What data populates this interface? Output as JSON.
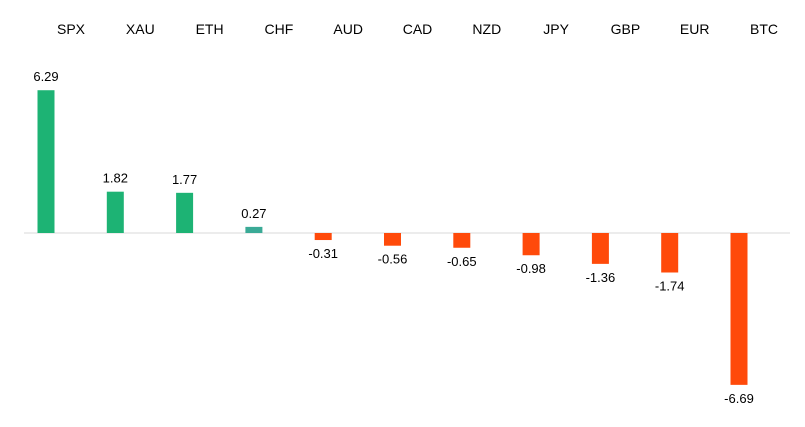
{
  "chart_data": {
    "type": "bar",
    "categories": [
      "SPX",
      "XAU",
      "ETH",
      "CHF",
      "AUD",
      "CAD",
      "NZD",
      "JPY",
      "GBP",
      "EUR",
      "BTC"
    ],
    "values": [
      6.29,
      1.82,
      1.77,
      0.27,
      -0.31,
      -0.56,
      -0.65,
      -0.98,
      -1.36,
      -1.74,
      -6.69
    ],
    "value_labels": [
      "6.29",
      "1.82",
      "1.77",
      "0.27",
      "-0.31",
      "-0.56",
      "-0.65",
      "-0.98",
      "-1.36",
      "-1.74",
      "-6.69"
    ],
    "ylim": [
      -6.69,
      6.29
    ],
    "category_label_position": "top",
    "grid": false,
    "legend": "none",
    "colors": {
      "positive": "#1db374",
      "positive_small": "#3aaa96",
      "negative": "#ff4a0a",
      "axis": "#d9d9d9"
    }
  }
}
